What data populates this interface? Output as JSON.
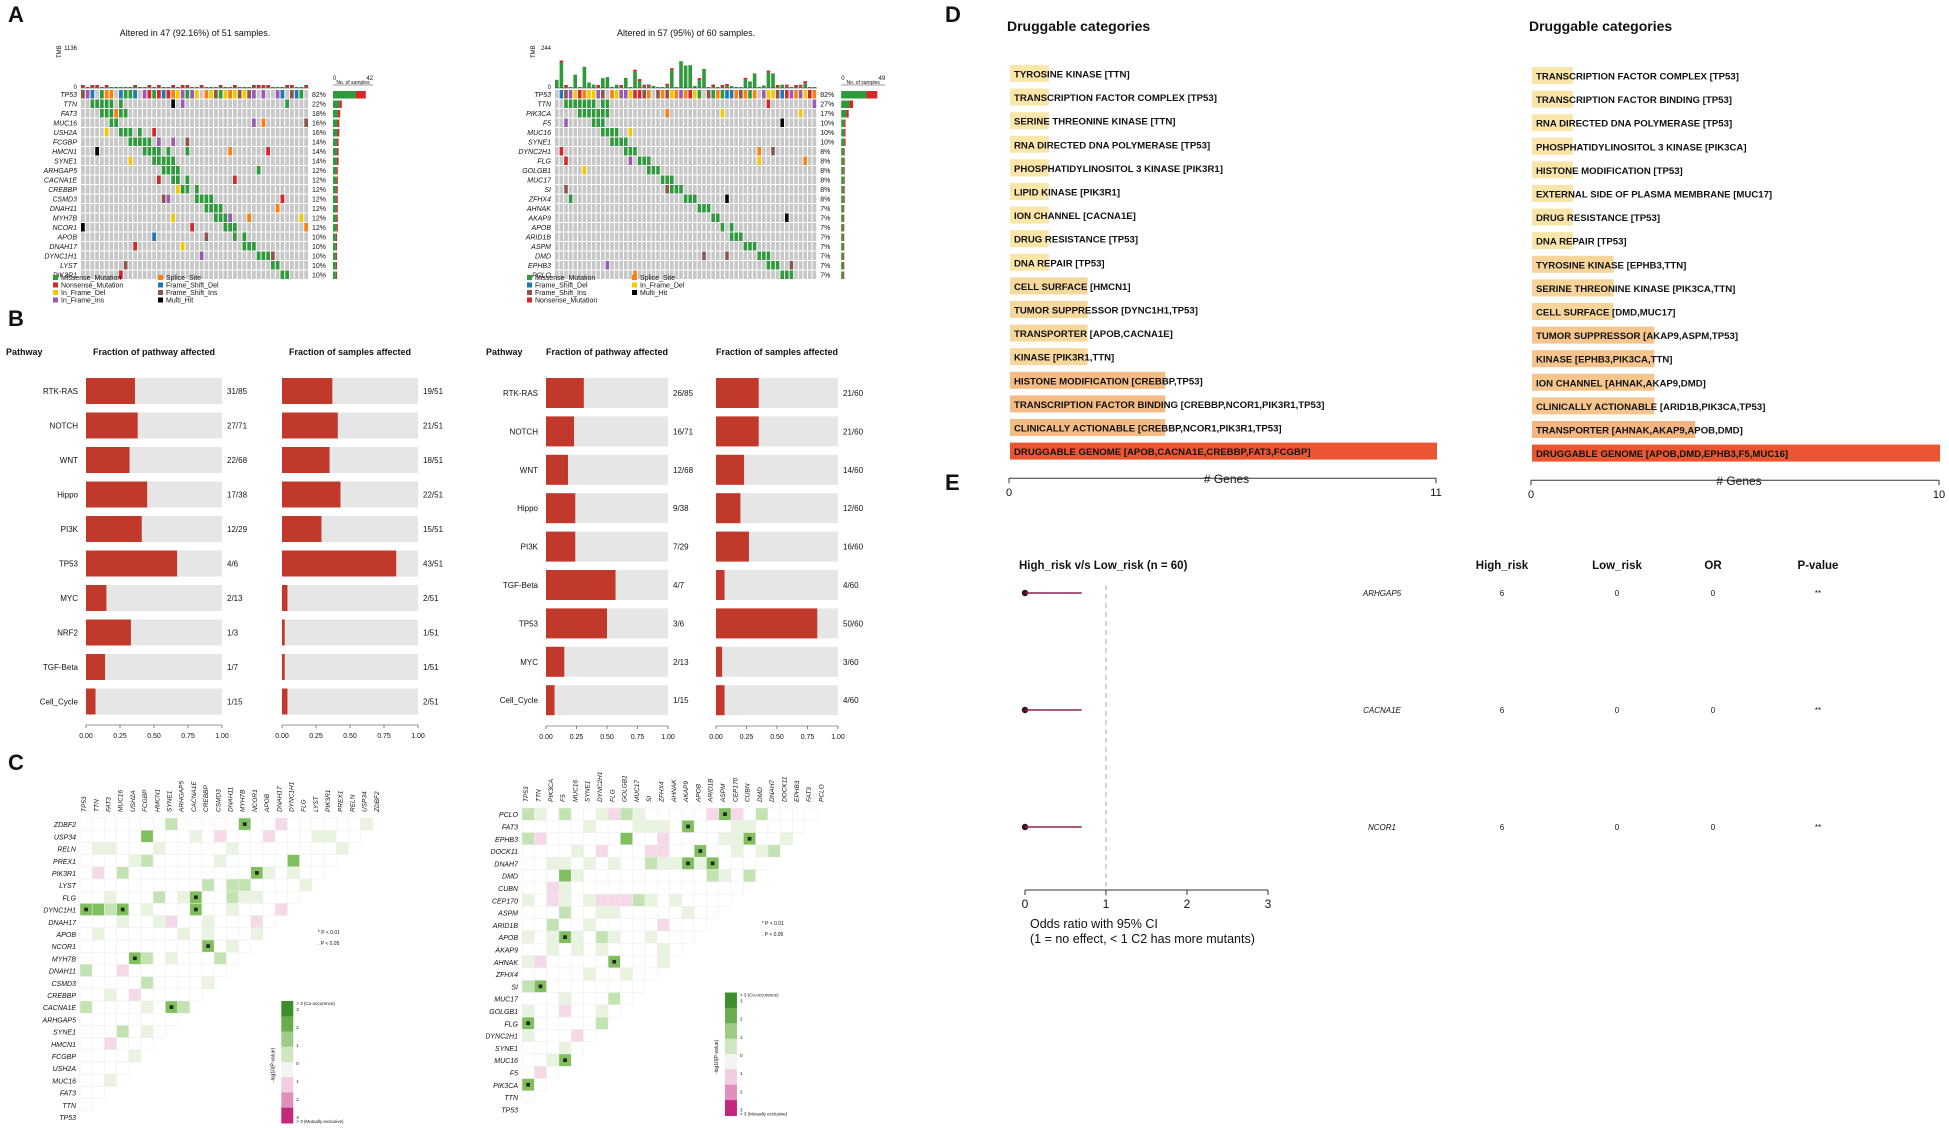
{
  "colors": {
    "missense": "#2e9a3c",
    "nonsense": "#d62728",
    "inframe_del": "#f4c700",
    "inframe_ins": "#9b59b6",
    "splice": "#ff7f0e",
    "fs_del": "#1f77b4",
    "fs_ins": "#8c564b",
    "multi": "#000000",
    "bar_red": "#c0392b",
    "bar_bg": "#e6e6e6",
    "grid_grey": "#c8c8c8",
    "co_green": "#3d8f2e",
    "excl_pink": "#c2297d"
  },
  "panels": {
    "A": "A",
    "B": "B",
    "C": "C",
    "D": "D",
    "E": "E"
  },
  "oncoplot_left": {
    "title": "Altered in 47 (92.16%) of 51 samples.",
    "tmb_label": "TMB",
    "tmb_ticks": [
      "1136",
      "0"
    ],
    "samples_label": "No. of samples",
    "samples_ticks": [
      "0",
      "42"
    ],
    "genes": [
      "TP53",
      "TTN",
      "FAT3",
      "MUC16",
      "USH2A",
      "FCGBP",
      "HMCN1",
      "SYNE1",
      "ARHGAP5",
      "CACNA1E",
      "CREBBP",
      "CSMD3",
      "DNAH11",
      "MYH7B",
      "NCOR1",
      "APOB",
      "DNAH17",
      "DYNC1H1",
      "LYST",
      "PIK3R1"
    ],
    "pcts": [
      "82%",
      "22%",
      "18%",
      "16%",
      "16%",
      "14%",
      "14%",
      "14%",
      "12%",
      "12%",
      "12%",
      "12%",
      "12%",
      "12%",
      "12%",
      "10%",
      "10%",
      "10%",
      "10%",
      "10%"
    ],
    "legend": [
      "Missense_Mutation",
      "Nonsense_Mutation",
      "In_Frame_Del",
      "In_Frame_Ins",
      "Splice_Site",
      "Frame_Shift_Del",
      "Frame_Shift_Ins",
      "Multi_Hit"
    ]
  },
  "oncoplot_right": {
    "title": "Altered in 57 (95%) of 60 samples.",
    "tmb_label": "TMB",
    "tmb_ticks": [
      "244",
      "0"
    ],
    "samples_label": "No. of samples",
    "samples_ticks": [
      "0",
      "49"
    ],
    "genes": [
      "TP53",
      "TTN",
      "PIK3CA",
      "F5",
      "MUC16",
      "SYNE1",
      "DYNC2H1",
      "FLG",
      "GOLGB1",
      "MUC17",
      "SI",
      "ZFHX4",
      "AHNAK",
      "AKAP9",
      "APOB",
      "ARID1B",
      "ASPM",
      "DMD",
      "EPHB3",
      "PCLO"
    ],
    "pcts": [
      "82%",
      "27%",
      "17%",
      "10%",
      "10%",
      "10%",
      "8%",
      "8%",
      "8%",
      "8%",
      "8%",
      "8%",
      "7%",
      "7%",
      "7%",
      "7%",
      "7%",
      "7%",
      "7%",
      "7%"
    ],
    "legend": [
      "Missense_Mutation",
      "Frame_Shift_Del",
      "Frame_Shift_Ins",
      "Nonsense_Mutation",
      "Splice_Site",
      "In_Frame_Del",
      "Multi_Hit"
    ]
  },
  "pathway_headers": {
    "pathway": "Pathway",
    "frac_pathway": "Fraction of pathway affected",
    "frac_samples": "Fraction of samples affected"
  },
  "x_ticks": [
    "0.00",
    "0.25",
    "0.50",
    "0.75",
    "1.00"
  ],
  "pathways_left": [
    {
      "name": "RTK-RAS",
      "fp": 0.36,
      "fp_label": "31/85",
      "fs": 0.37,
      "fs_label": "19/51"
    },
    {
      "name": "NOTCH",
      "fp": 0.38,
      "fp_label": "27/71",
      "fs": 0.41,
      "fs_label": "21/51"
    },
    {
      "name": "WNT",
      "fp": 0.32,
      "fp_label": "22/68",
      "fs": 0.35,
      "fs_label": "18/51"
    },
    {
      "name": "Hippo",
      "fp": 0.45,
      "fp_label": "17/38",
      "fs": 0.43,
      "fs_label": "22/51"
    },
    {
      "name": "PI3K",
      "fp": 0.41,
      "fp_label": "12/29",
      "fs": 0.29,
      "fs_label": "15/51"
    },
    {
      "name": "TP53",
      "fp": 0.67,
      "fp_label": "4/6",
      "fs": 0.84,
      "fs_label": "43/51"
    },
    {
      "name": "MYC",
      "fp": 0.15,
      "fp_label": "2/13",
      "fs": 0.04,
      "fs_label": "2/51"
    },
    {
      "name": "NRF2",
      "fp": 0.33,
      "fp_label": "1/3",
      "fs": 0.02,
      "fs_label": "1/51"
    },
    {
      "name": "TGF-Beta",
      "fp": 0.14,
      "fp_label": "1/7",
      "fs": 0.02,
      "fs_label": "1/51"
    },
    {
      "name": "Cell_Cycle",
      "fp": 0.07,
      "fp_label": "1/15",
      "fs": 0.04,
      "fs_label": "2/51"
    }
  ],
  "pathways_right": [
    {
      "name": "RTK-RAS",
      "fp": 0.31,
      "fp_label": "26/85",
      "fs": 0.35,
      "fs_label": "21/60"
    },
    {
      "name": "NOTCH",
      "fp": 0.23,
      "fp_label": "16/71",
      "fs": 0.35,
      "fs_label": "21/60"
    },
    {
      "name": "WNT",
      "fp": 0.18,
      "fp_label": "12/68",
      "fs": 0.23,
      "fs_label": "14/60"
    },
    {
      "name": "Hippo",
      "fp": 0.24,
      "fp_label": "9/38",
      "fs": 0.2,
      "fs_label": "12/60"
    },
    {
      "name": "PI3K",
      "fp": 0.24,
      "fp_label": "7/29",
      "fs": 0.27,
      "fs_label": "16/60"
    },
    {
      "name": "TGF-Beta",
      "fp": 0.57,
      "fp_label": "4/7",
      "fs": 0.07,
      "fs_label": "4/60"
    },
    {
      "name": "TP53",
      "fp": 0.5,
      "fp_label": "3/6",
      "fs": 0.83,
      "fs_label": "50/60"
    },
    {
      "name": "MYC",
      "fp": 0.15,
      "fp_label": "2/13",
      "fs": 0.05,
      "fs_label": "3/60"
    },
    {
      "name": "Cell_Cycle",
      "fp": 0.07,
      "fp_label": "1/15",
      "fs": 0.07,
      "fs_label": "4/60"
    }
  ],
  "corr_left": {
    "top": [
      "TP53",
      "TTN",
      "FAT3",
      "MUC16",
      "USH2A",
      "FCGBP",
      "HMCN1",
      "SYNE1",
      "ARHGAP5",
      "CACNA1E",
      "CREBBP",
      "CSMD3",
      "DNAH11",
      "MYH7B",
      "NCOR1",
      "APOB",
      "DNAH17",
      "DYNC1H1",
      "FLG",
      "LYST",
      "PIK3R1",
      "PREX1",
      "RELN",
      "USP34",
      "ZDBF2"
    ],
    "rows": [
      "ZDBF2",
      "USP34",
      "RELN",
      "PREX1",
      "PIK3R1",
      "LYST",
      "FLG",
      "DYNC1H1",
      "DNAH17",
      "APOB",
      "NCOR1",
      "MYH7B",
      "DNAH11",
      "CSMD3",
      "CREBBP",
      "CACNA1E",
      "ARHGAP5",
      "SYNE1",
      "HMCN1",
      "FCGBP",
      "USH2A",
      "MUC16",
      "FAT3",
      "TTN",
      "TP53"
    ],
    "sig1": "* P < 0.01",
    "sig2": ". P < 0.05",
    "scale_top": "> 3 (Co-occurence)",
    "scale_bottom": "> 3 (Mutually exclusive)",
    "scale_axis": "-log10(P-value)",
    "scale_ticks": [
      "3",
      "2",
      "1",
      "0",
      "1",
      "2",
      "3"
    ]
  },
  "corr_right": {
    "top": [
      "TP53",
      "TTN",
      "PIK3CA",
      "F5",
      "MUC16",
      "SYNE1",
      "DYNC2H1",
      "FLG",
      "GOLGB1",
      "MUC17",
      "SI",
      "ZFHX4",
      "AHNAK",
      "AKAP9",
      "APOB",
      "ARID1B",
      "ASPM",
      "CEP170",
      "CUBN",
      "DMD",
      "DNAH7",
      "DOCK11",
      "EPHB3",
      "FAT3",
      "PCLO"
    ],
    "rows": [
      "PCLO",
      "FAT3",
      "EPHB3",
      "DOCK11",
      "DNAH7",
      "DMD",
      "CUBN",
      "CEP170",
      "ASPM",
      "ARID1B",
      "APOB",
      "AKAP9",
      "AHNAK",
      "ZFHX4",
      "SI",
      "MUC17",
      "GOLGB1",
      "FLG",
      "DYNC2H1",
      "SYNE1",
      "MUC16",
      "F5",
      "PIK3CA",
      "TTN",
      "TP53"
    ],
    "sig1": "* P < 0.01",
    "sig2": ". P < 0.05",
    "scale_top": "> 3 (Co-occurence)",
    "scale_bottom": "> 3 (Mutually exclusive)",
    "scale_axis": "-log10(P-value)",
    "scale_ticks": [
      "3",
      "2",
      "1",
      "0",
      "1",
      "2",
      "3"
    ]
  },
  "chart_data": [
    {
      "type": "bar",
      "title": "Druggable categories",
      "xlabel": "# Genes",
      "xlim": [
        0,
        11
      ],
      "x_ticks": [
        "0",
        "11"
      ],
      "categories": [
        "TYROSINE KINASE [TTN]",
        "TRANSCRIPTION FACTOR COMPLEX [TP53]",
        "SERINE THREONINE KINASE [TTN]",
        "RNA DIRECTED DNA POLYMERASE [TP53]",
        "PHOSPHATIDYLINOSITOL 3 KINASE [PIK3R1]",
        "LIPID KINASE [PIK3R1]",
        "ION CHANNEL [CACNA1E]",
        "DRUG RESISTANCE [TP53]",
        "DNA REPAIR [TP53]",
        "CELL SURFACE [HMCN1]",
        "TUMOR SUPPRESSOR [DYNC1H1,TP53]",
        "TRANSPORTER [APOB,CACNA1E]",
        "KINASE [PIK3R1,TTN]",
        "HISTONE MODIFICATION [CREBBP,TP53]",
        "TRANSCRIPTION FACTOR BINDING [CREBBP,NCOR1,PIK3R1,TP53]",
        "CLINICALLY ACTIONABLE [CREBBP,NCOR1,PIK3R1,TP53]",
        "DRUGGABLE GENOME [APOB,CACNA1E,CREBBP,FAT3,FCGBP]"
      ],
      "values": [
        1,
        1,
        1,
        1,
        1,
        1,
        1,
        1,
        1,
        2,
        2,
        2,
        2,
        4,
        4,
        4,
        11
      ]
    },
    {
      "type": "bar",
      "title": "Druggable categories",
      "xlabel": "# Genes",
      "xlim": [
        0,
        10
      ],
      "x_ticks": [
        "0",
        "10"
      ],
      "categories": [
        "TRANSCRIPTION FACTOR COMPLEX [TP53]",
        "TRANSCRIPTION FACTOR BINDING [TP53]",
        "RNA DIRECTED DNA POLYMERASE [TP53]",
        "PHOSPHATIDYLINOSITOL 3 KINASE [PIK3CA]",
        "HISTONE MODIFICATION [TP53]",
        "EXTERNAL SIDE OF PLASMA MEMBRANE [MUC17]",
        "DRUG RESISTANCE [TP53]",
        "DNA REPAIR [TP53]",
        "TYROSINE KINASE [EPHB3,TTN]",
        "SERINE THREONINE KINASE [PIK3CA,TTN]",
        "CELL SURFACE [DMD,MUC17]",
        "TUMOR SUPPRESSOR [AKAP9,ASPM,TP53]",
        "KINASE [EPHB3,PIK3CA,TTN]",
        "ION CHANNEL [AHNAK,AKAP9,DMD]",
        "CLINICALLY ACTIONABLE [ARID1B,PIK3CA,TP53]",
        "TRANSPORTER [AHNAK,AKAP9,APOB,DMD]",
        "DRUGGABLE GENOME [APOB,DMD,EPHB3,F5,MUC16]"
      ],
      "values": [
        1,
        1,
        1,
        1,
        1,
        1,
        1,
        1,
        2,
        2,
        2,
        3,
        3,
        3,
        3,
        4,
        10
      ]
    },
    {
      "type": "scatter",
      "title": "High_risk  v/s Low_risk (n = 60)",
      "xlabel": "Odds ratio with 95% CI",
      "xlabel2": "(1 = no effect, < 1 C2 has more mutants)",
      "xlim": [
        0,
        3
      ],
      "x_ticks": [
        "0",
        "1",
        "2",
        "3"
      ],
      "headers": [
        "High_risk",
        "Low_risk",
        "OR",
        "P-value"
      ],
      "rows": [
        {
          "gene": "ARHGAP5",
          "high": "6",
          "low": "0",
          "or": "0",
          "p": "**",
          "ci": [
            0,
            0.7
          ]
        },
        {
          "gene": "CACNA1E",
          "high": "6",
          "low": "0",
          "or": "0",
          "p": "**",
          "ci": [
            0,
            0.7
          ]
        },
        {
          "gene": "NCOR1",
          "high": "6",
          "low": "0",
          "or": "0",
          "p": "**",
          "ci": [
            0,
            0.7
          ]
        }
      ]
    }
  ]
}
